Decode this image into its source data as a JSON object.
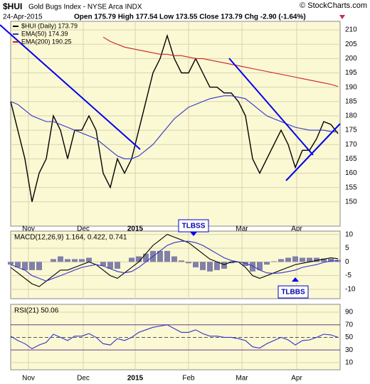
{
  "header": {
    "symbol": "$HUI",
    "name": "Gold Bugs Index - NYSE Arca INDX",
    "date": "24-Apr-2015",
    "stats": "Open 175.79  High 177.54  Low 173.55  Close 173.79  Chg -2.90 (-1.64%)",
    "credit": "© StockCharts.com"
  },
  "chart_data": [
    {
      "type": "line",
      "xlim": [
        0,
        46.3
      ],
      "ylim": [
        141.5,
        213
      ],
      "grid": true,
      "yticks": [
        150,
        155,
        160,
        165,
        170,
        175,
        180,
        185,
        190,
        195,
        200,
        205,
        210
      ],
      "xticks": [
        {
          "value": 2.5,
          "label": "Nov"
        },
        {
          "value": 10.2,
          "label": "Dec"
        },
        {
          "value": 17.5,
          "label": "2015"
        },
        {
          "value": 25,
          "label": "Feb"
        },
        {
          "value": 32.5,
          "label": "Mar"
        },
        {
          "value": 40.2,
          "label": "Apr"
        }
      ],
      "series": [
        {
          "name": "$HUI (Daily) 173.79",
          "color": "#000000",
          "values": [
            185,
            175,
            165,
            150,
            160,
            165,
            180,
            175,
            165,
            175,
            175,
            180,
            175,
            160,
            155,
            165,
            160,
            165,
            175,
            185,
            195,
            200,
            208,
            200,
            195,
            195,
            200,
            195,
            190,
            190,
            188,
            188,
            185,
            180,
            165,
            160,
            165,
            170,
            175,
            170,
            162,
            168,
            168,
            172,
            178,
            177,
            173.79
          ]
        },
        {
          "name": "EMA(50) 174.39",
          "color": "#3333cc",
          "values": [
            185,
            184,
            182,
            180,
            179,
            178,
            178,
            177,
            176,
            175,
            174,
            173,
            172,
            170,
            168,
            166,
            165,
            165,
            166,
            168,
            170,
            173,
            176,
            179,
            181,
            183,
            184,
            185,
            186,
            186.5,
            187,
            187,
            186.5,
            186,
            184,
            182,
            180,
            179,
            178,
            177,
            176,
            175.5,
            175,
            175,
            175,
            174.5,
            174.39
          ]
        },
        {
          "name": "EMA(200) 190.25",
          "color": "#cc2222",
          "values": [
            null,
            null,
            null,
            null,
            null,
            null,
            null,
            null,
            null,
            null,
            null,
            null,
            null,
            207.5,
            206,
            205,
            204,
            203.5,
            203,
            202.5,
            202,
            201.5,
            201.5,
            201,
            201,
            200.5,
            200,
            200,
            199.5,
            199,
            198.5,
            198,
            197.5,
            197,
            196.5,
            196,
            195.5,
            195,
            194.5,
            194,
            193.5,
            193,
            192.5,
            192,
            191.5,
            191,
            190.25
          ]
        }
      ]
    },
    {
      "type": "combo",
      "title": "MACD(12,26,9) 1.164, 0.422, 0.741",
      "xlim": [
        0,
        46.3
      ],
      "ylim": [
        -13.4,
        11.2
      ],
      "grid": true,
      "yticks": [
        10,
        5,
        0,
        -5,
        -10
      ],
      "annotations": [
        "TLBSS",
        "TLBBS"
      ],
      "series": [
        {
          "type": "bar",
          "color": "#8080a8",
          "values": [
            -1,
            -2,
            -3,
            -3,
            -3,
            0,
            1,
            2,
            1,
            1,
            1,
            1.5,
            0,
            -1.5,
            -2.5,
            -2.5,
            0,
            1.5,
            2,
            3,
            4,
            4,
            4,
            2,
            0.5,
            -0.5,
            -2,
            -3,
            -3.5,
            -3,
            -2.5,
            -0.5,
            0,
            -1.5,
            -3.5,
            -3,
            -1,
            0.2,
            1,
            1.5,
            2,
            1.5,
            1.5,
            1.5,
            1.2,
            1.2,
            0.741
          ]
        },
        {
          "type": "line",
          "color": "#000000",
          "values": [
            -2,
            -4,
            -6,
            -8,
            -9,
            -7,
            -5,
            -3,
            -3,
            -2,
            -1,
            0,
            -1,
            -3,
            -5,
            -6,
            -4,
            -2,
            0,
            3,
            6,
            8,
            10,
            9,
            8,
            7,
            5,
            3,
            1,
            0,
            -1,
            0,
            0,
            -2,
            -5,
            -6,
            -5,
            -4,
            -3,
            -2,
            -1,
            -0.5,
            0,
            0.5,
            1,
            1.5,
            1.164
          ]
        },
        {
          "type": "line",
          "color": "#3333cc",
          "values": [
            -1,
            -2,
            -3,
            -5,
            -6,
            -7,
            -6,
            -5,
            -4,
            -3,
            -2,
            -1.5,
            -1,
            -1.5,
            -2.5,
            -3.5,
            -4,
            -3.5,
            -2,
            0,
            2,
            4,
            6,
            7,
            7.5,
            7.5,
            7,
            6,
            4.5,
            3,
            1.5,
            0.5,
            0,
            -0.5,
            -1.5,
            -3,
            -4,
            -4.2,
            -4,
            -3.5,
            -3,
            -2,
            -1.5,
            -1,
            -0.2,
            0.3,
            0.422
          ]
        }
      ]
    },
    {
      "type": "line",
      "title": "RSI(21) 50.06",
      "xlim": [
        0,
        46.3
      ],
      "ylim": [
        -1.5,
        102.5
      ],
      "grid": true,
      "yticks": [
        10,
        30,
        50,
        70,
        90
      ],
      "xticks": [
        {
          "value": 2.5,
          "label": "Nov"
        },
        {
          "value": 10.2,
          "label": "Dec"
        },
        {
          "value": 17.5,
          "label": "2015"
        },
        {
          "value": 25,
          "label": "Feb"
        },
        {
          "value": 32.5,
          "label": "Mar"
        },
        {
          "value": 40.2,
          "label": "Apr"
        }
      ],
      "series": [
        {
          "color": "#3333cc",
          "values": [
            52,
            45,
            40,
            32,
            38,
            42,
            55,
            50,
            45,
            52,
            52,
            56,
            50,
            40,
            38,
            48,
            45,
            50,
            58,
            62,
            66,
            68,
            70,
            64,
            58,
            58,
            62,
            56,
            52,
            52,
            50,
            50,
            48,
            45,
            35,
            33,
            40,
            45,
            50,
            46,
            38,
            45,
            46,
            50,
            55,
            54,
            50.06
          ]
        }
      ]
    }
  ]
}
